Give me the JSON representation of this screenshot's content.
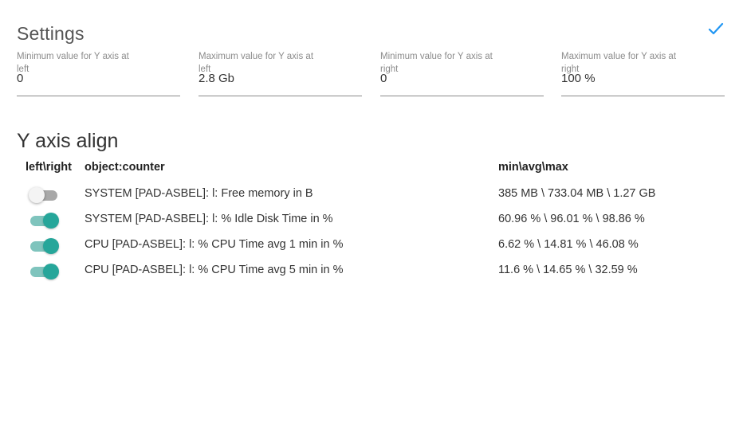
{
  "settings": {
    "title": "Settings",
    "confirm_icon": "checkmark-icon",
    "confirm_color": "#2196f3",
    "fields": [
      {
        "label": "Minimum value for Y axis at left",
        "value": "0"
      },
      {
        "label": "Maximum value for Y axis at left",
        "value": "2.8 Gb"
      },
      {
        "label": "Minimum value for Y axis at right",
        "value": "0"
      },
      {
        "label": "Maximum value for Y axis at right",
        "value": "100 %"
      }
    ]
  },
  "y_axis_align": {
    "title": "Y axis align",
    "headers": {
      "side": "left\\right",
      "counter": "object:counter",
      "stats": "min\\avg\\max"
    },
    "toggle_on_color": "#26a69a",
    "rows": [
      {
        "on": false,
        "counter": "SYSTEM [PAD-ASBEL]: l: Free memory in B",
        "stats": "385 MB \\ 733.04 MB \\ 1.27 GB"
      },
      {
        "on": true,
        "counter": "SYSTEM [PAD-ASBEL]: l: % Idle Disk Time in %",
        "stats": "60.96 % \\ 96.01 % \\ 98.86 %"
      },
      {
        "on": true,
        "counter": "CPU [PAD-ASBEL]: l: % CPU Time avg 1 min in %",
        "stats": "6.62 % \\ 14.81 % \\ 46.08 %"
      },
      {
        "on": true,
        "counter": "CPU [PAD-ASBEL]: l: % CPU Time avg 5 min in %",
        "stats": "11.6 % \\ 14.65 % \\ 32.59 %"
      }
    ]
  }
}
